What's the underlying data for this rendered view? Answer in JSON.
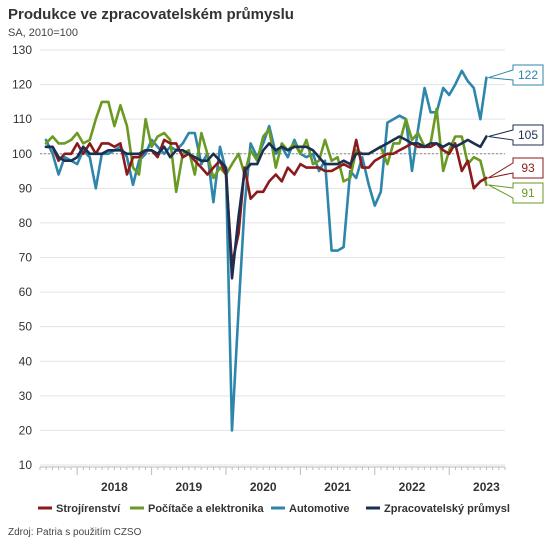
{
  "chart_data": {
    "type": "line",
    "title": "Produkce ve zpracovatelském průmyslu",
    "subtitle": "SA, 2010=100",
    "source": "Zdroj: Patria s použitím CZSO",
    "ylim": [
      10,
      130
    ],
    "yticks": [
      10,
      20,
      30,
      40,
      50,
      60,
      70,
      80,
      90,
      100,
      110,
      120,
      130
    ],
    "reference_line": 100,
    "xlim": [
      2017.5,
      2023.75
    ],
    "year_ticks": [
      "2018",
      "2019",
      "2020",
      "2021",
      "2022",
      "2023"
    ],
    "grid": "horizontal",
    "legend_position": "bottom",
    "series": [
      {
        "name": "Automotive",
        "color": "#2e86ab",
        "end_label": "122",
        "values": [
          [
            2017.58,
            104
          ],
          [
            2017.67,
            100
          ],
          [
            2017.75,
            94
          ],
          [
            2017.83,
            99
          ],
          [
            2017.92,
            98
          ],
          [
            2018.0,
            97
          ],
          [
            2018.08,
            101
          ],
          [
            2018.17,
            99
          ],
          [
            2018.25,
            90
          ],
          [
            2018.33,
            100
          ],
          [
            2018.42,
            100
          ],
          [
            2018.5,
            101
          ],
          [
            2018.58,
            102
          ],
          [
            2018.67,
            99
          ],
          [
            2018.75,
            91
          ],
          [
            2018.83,
            98
          ],
          [
            2018.92,
            100
          ],
          [
            2019.0,
            104
          ],
          [
            2019.08,
            102
          ],
          [
            2019.17,
            100
          ],
          [
            2019.25,
            102
          ],
          [
            2019.33,
            101
          ],
          [
            2019.42,
            103
          ],
          [
            2019.5,
            106
          ],
          [
            2019.58,
            106
          ],
          [
            2019.67,
            97
          ],
          [
            2019.75,
            100
          ],
          [
            2019.83,
            86
          ],
          [
            2019.92,
            102
          ],
          [
            2020.0,
            95
          ],
          [
            2020.08,
            20
          ],
          [
            2020.17,
            55
          ],
          [
            2020.25,
            85
          ],
          [
            2020.33,
            103
          ],
          [
            2020.42,
            99
          ],
          [
            2020.5,
            103
          ],
          [
            2020.58,
            108
          ],
          [
            2020.67,
            100
          ],
          [
            2020.75,
            102
          ],
          [
            2020.83,
            99
          ],
          [
            2020.92,
            104
          ],
          [
            2021.0,
            100
          ],
          [
            2021.08,
            99
          ],
          [
            2021.17,
            100
          ],
          [
            2021.25,
            95
          ],
          [
            2021.33,
            98
          ],
          [
            2021.42,
            72
          ],
          [
            2021.5,
            72
          ],
          [
            2021.58,
            73
          ],
          [
            2021.67,
            95
          ],
          [
            2021.75,
            93
          ],
          [
            2021.83,
            99
          ],
          [
            2021.92,
            91
          ],
          [
            2022.0,
            85
          ],
          [
            2022.08,
            89
          ],
          [
            2022.17,
            109
          ],
          [
            2022.25,
            110
          ],
          [
            2022.33,
            111
          ],
          [
            2022.42,
            110
          ],
          [
            2022.5,
            95
          ],
          [
            2022.58,
            107
          ],
          [
            2022.67,
            119
          ],
          [
            2022.75,
            112
          ],
          [
            2022.83,
            112
          ],
          [
            2022.92,
            119
          ],
          [
            2023.0,
            117
          ],
          [
            2023.08,
            120
          ],
          [
            2023.17,
            124
          ],
          [
            2023.25,
            121
          ],
          [
            2023.33,
            119
          ],
          [
            2023.42,
            110
          ],
          [
            2023.5,
            122
          ]
        ]
      },
      {
        "name": "Počítače a elektronika",
        "color": "#6a9a23",
        "end_label": "91",
        "values": [
          [
            2017.58,
            103
          ],
          [
            2017.67,
            105
          ],
          [
            2017.75,
            103
          ],
          [
            2017.83,
            103
          ],
          [
            2017.92,
            104
          ],
          [
            2018.0,
            106
          ],
          [
            2018.08,
            103
          ],
          [
            2018.17,
            104
          ],
          [
            2018.25,
            110
          ],
          [
            2018.33,
            115
          ],
          [
            2018.42,
            115
          ],
          [
            2018.5,
            108
          ],
          [
            2018.58,
            114
          ],
          [
            2018.67,
            108
          ],
          [
            2018.75,
            96
          ],
          [
            2018.83,
            94
          ],
          [
            2018.92,
            110
          ],
          [
            2019.0,
            102
          ],
          [
            2019.08,
            105
          ],
          [
            2019.17,
            106
          ],
          [
            2019.25,
            104
          ],
          [
            2019.33,
            89
          ],
          [
            2019.42,
            100
          ],
          [
            2019.5,
            101
          ],
          [
            2019.58,
            94
          ],
          [
            2019.67,
            106
          ],
          [
            2019.75,
            100
          ],
          [
            2019.83,
            93
          ],
          [
            2019.92,
            96
          ],
          [
            2020.0,
            94
          ],
          [
            2020.08,
            97
          ],
          [
            2020.17,
            100
          ],
          [
            2020.25,
            94
          ],
          [
            2020.33,
            101
          ],
          [
            2020.42,
            98
          ],
          [
            2020.5,
            105
          ],
          [
            2020.58,
            107
          ],
          [
            2020.67,
            96
          ],
          [
            2020.75,
            103
          ],
          [
            2020.83,
            101
          ],
          [
            2020.92,
            103
          ],
          [
            2021.0,
            100
          ],
          [
            2021.08,
            104
          ],
          [
            2021.17,
            97
          ],
          [
            2021.25,
            98
          ],
          [
            2021.33,
            104
          ],
          [
            2021.42,
            98
          ],
          [
            2021.5,
            99
          ],
          [
            2021.58,
            92
          ],
          [
            2021.67,
            93
          ],
          [
            2021.75,
            101
          ],
          [
            2021.83,
            100
          ],
          [
            2021.92,
            100
          ],
          [
            2022.0,
            101
          ],
          [
            2022.08,
            102
          ],
          [
            2022.17,
            97
          ],
          [
            2022.25,
            103
          ],
          [
            2022.33,
            103
          ],
          [
            2022.42,
            110
          ],
          [
            2022.5,
            104
          ],
          [
            2022.58,
            106
          ],
          [
            2022.67,
            102
          ],
          [
            2022.75,
            103
          ],
          [
            2022.83,
            113
          ],
          [
            2022.92,
            95
          ],
          [
            2023.0,
            101
          ],
          [
            2023.08,
            105
          ],
          [
            2023.17,
            105
          ],
          [
            2023.25,
            97
          ],
          [
            2023.33,
            99
          ],
          [
            2023.42,
            98
          ],
          [
            2023.5,
            91
          ]
        ]
      },
      {
        "name": "Strojírenství",
        "color": "#8b1a1a",
        "end_label": "93",
        "values": [
          [
            2017.58,
            102
          ],
          [
            2017.67,
            102
          ],
          [
            2017.75,
            98
          ],
          [
            2017.83,
            100
          ],
          [
            2017.92,
            100
          ],
          [
            2018.0,
            103
          ],
          [
            2018.08,
            100
          ],
          [
            2018.17,
            103
          ],
          [
            2018.25,
            100
          ],
          [
            2018.33,
            103
          ],
          [
            2018.42,
            103
          ],
          [
            2018.5,
            102
          ],
          [
            2018.58,
            103
          ],
          [
            2018.67,
            94
          ],
          [
            2018.75,
            99
          ],
          [
            2018.83,
            99
          ],
          [
            2018.92,
            101
          ],
          [
            2019.0,
            101
          ],
          [
            2019.08,
            99
          ],
          [
            2019.17,
            104
          ],
          [
            2019.25,
            103
          ],
          [
            2019.33,
            103
          ],
          [
            2019.42,
            99
          ],
          [
            2019.5,
            100
          ],
          [
            2019.58,
            98
          ],
          [
            2019.67,
            96
          ],
          [
            2019.75,
            94
          ],
          [
            2019.83,
            96
          ],
          [
            2019.92,
            98
          ],
          [
            2020.0,
            94
          ],
          [
            2020.08,
            68
          ],
          [
            2020.17,
            77
          ],
          [
            2020.25,
            96
          ],
          [
            2020.33,
            87
          ],
          [
            2020.42,
            89
          ],
          [
            2020.5,
            89
          ],
          [
            2020.58,
            92
          ],
          [
            2020.67,
            94
          ],
          [
            2020.75,
            92
          ],
          [
            2020.83,
            96
          ],
          [
            2020.92,
            94
          ],
          [
            2021.0,
            97
          ],
          [
            2021.08,
            96
          ],
          [
            2021.17,
            96
          ],
          [
            2021.25,
            96
          ],
          [
            2021.33,
            95
          ],
          [
            2021.42,
            95
          ],
          [
            2021.5,
            96
          ],
          [
            2021.58,
            97
          ],
          [
            2021.67,
            96
          ],
          [
            2021.75,
            104
          ],
          [
            2021.83,
            96
          ],
          [
            2021.92,
            96
          ],
          [
            2022.0,
            98
          ],
          [
            2022.08,
            99
          ],
          [
            2022.17,
            100
          ],
          [
            2022.25,
            100
          ],
          [
            2022.33,
            101
          ],
          [
            2022.42,
            102
          ],
          [
            2022.5,
            103
          ],
          [
            2022.58,
            102
          ],
          [
            2022.67,
            102
          ],
          [
            2022.75,
            102
          ],
          [
            2022.83,
            103
          ],
          [
            2022.92,
            101
          ],
          [
            2023.0,
            100
          ],
          [
            2023.08,
            103
          ],
          [
            2023.17,
            95
          ],
          [
            2023.25,
            98
          ],
          [
            2023.33,
            90
          ],
          [
            2023.42,
            92
          ],
          [
            2023.5,
            93
          ]
        ]
      },
      {
        "name": "Zpracovatelský průmysl",
        "color": "#1b2f52",
        "end_label": "105",
        "values": [
          [
            2017.58,
            102
          ],
          [
            2017.67,
            102
          ],
          [
            2017.75,
            99
          ],
          [
            2017.83,
            98
          ],
          [
            2017.92,
            98
          ],
          [
            2018.0,
            99
          ],
          [
            2018.08,
            102
          ],
          [
            2018.17,
            100
          ],
          [
            2018.25,
            100
          ],
          [
            2018.33,
            100
          ],
          [
            2018.42,
            101
          ],
          [
            2018.5,
            101
          ],
          [
            2018.58,
            101
          ],
          [
            2018.67,
            100
          ],
          [
            2018.75,
            100
          ],
          [
            2018.83,
            100
          ],
          [
            2018.92,
            101
          ],
          [
            2019.0,
            101
          ],
          [
            2019.08,
            100
          ],
          [
            2019.17,
            102
          ],
          [
            2019.25,
            99
          ],
          [
            2019.33,
            101
          ],
          [
            2019.42,
            101
          ],
          [
            2019.5,
            100
          ],
          [
            2019.58,
            99
          ],
          [
            2019.67,
            98
          ],
          [
            2019.75,
            98
          ],
          [
            2019.83,
            100
          ],
          [
            2019.92,
            98
          ],
          [
            2020.0,
            96
          ],
          [
            2020.08,
            64
          ],
          [
            2020.17,
            82
          ],
          [
            2020.25,
            95
          ],
          [
            2020.33,
            97
          ],
          [
            2020.42,
            97
          ],
          [
            2020.5,
            101
          ],
          [
            2020.58,
            103
          ],
          [
            2020.67,
            101
          ],
          [
            2020.75,
            102
          ],
          [
            2020.83,
            101
          ],
          [
            2020.92,
            102
          ],
          [
            2021.0,
            102
          ],
          [
            2021.08,
            102
          ],
          [
            2021.17,
            101
          ],
          [
            2021.25,
            99
          ],
          [
            2021.33,
            97
          ],
          [
            2021.42,
            97
          ],
          [
            2021.5,
            97
          ],
          [
            2021.58,
            98
          ],
          [
            2021.67,
            97
          ],
          [
            2021.75,
            100
          ],
          [
            2021.83,
            100
          ],
          [
            2021.92,
            100
          ],
          [
            2022.0,
            101
          ],
          [
            2022.08,
            102
          ],
          [
            2022.17,
            103
          ],
          [
            2022.25,
            104
          ],
          [
            2022.33,
            105
          ],
          [
            2022.42,
            104
          ],
          [
            2022.5,
            103
          ],
          [
            2022.58,
            103
          ],
          [
            2022.67,
            102
          ],
          [
            2022.75,
            103
          ],
          [
            2022.83,
            103
          ],
          [
            2022.92,
            102
          ],
          [
            2023.0,
            103
          ],
          [
            2023.08,
            102
          ],
          [
            2023.17,
            103
          ],
          [
            2023.25,
            104
          ],
          [
            2023.33,
            103
          ],
          [
            2023.42,
            102
          ],
          [
            2023.5,
            105
          ]
        ]
      }
    ],
    "legend_order": [
      "Strojírenství",
      "Počítače a elektronika",
      "Automotive",
      "Zpracovatelský průmysl"
    ]
  }
}
